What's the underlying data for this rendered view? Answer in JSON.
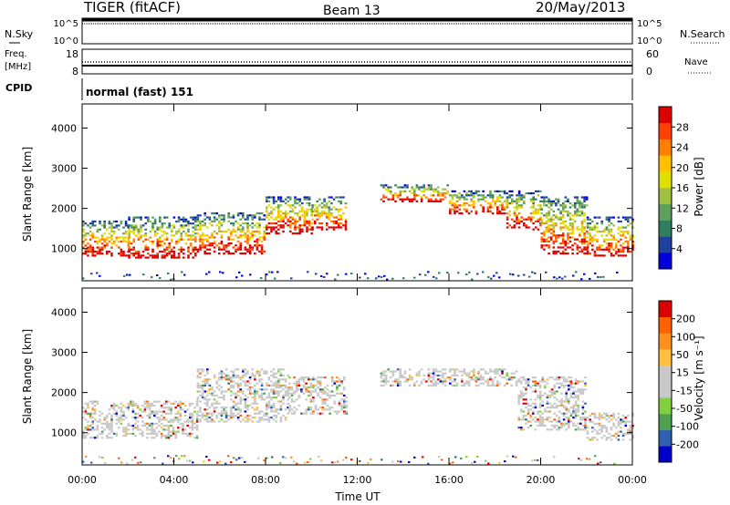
{
  "header": {
    "station": "TIGER (fitACF)",
    "beam": "Beam 13",
    "date": "20/May/2013"
  },
  "top_strips": {
    "nsky": {
      "label": "N.Sky",
      "ticks": [
        "10^5",
        "10^0"
      ]
    },
    "nsearch": {
      "label": "N.Search",
      "ticks": [
        "10^5",
        "10^0"
      ]
    },
    "freq": {
      "label_line1": "Freq.",
      "label_line2": "[MHz]",
      "ticks": [
        "18",
        "8"
      ]
    },
    "nave": {
      "label": "Nave",
      "ticks": [
        "60",
        "0"
      ]
    },
    "cpid": {
      "label": "CPID",
      "value": "normal (fast) 151"
    }
  },
  "chart_data": [
    {
      "type": "heatmap",
      "title": "",
      "ylabel": "Slant Range [km]",
      "xlabel": "Time UT",
      "x_ticks": [
        "00:00",
        "04:00",
        "08:00",
        "12:00",
        "16:00",
        "20:00",
        "00:00"
      ],
      "y_ticks": [
        1000,
        2000,
        3000,
        4000
      ],
      "ylim": [
        200,
        4600
      ],
      "xlim_hours": [
        0,
        24
      ],
      "colorbar": {
        "label": "Power [dB]",
        "ticks": [
          "28",
          "24",
          "20",
          "16",
          "12",
          "8",
          "4"
        ],
        "colors": [
          "#0000dd",
          "#2040a0",
          "#2f7f5f",
          "#5fa05f",
          "#9fc040",
          "#e0e000",
          "#ffc000",
          "#ff8000",
          "#ff4000",
          "#dd0000"
        ]
      },
      "bands": [
        {
          "from_h": 0.0,
          "to_h": 2.0,
          "lo_km": 850,
          "hi_km": 1700
        },
        {
          "from_h": 2.0,
          "to_h": 5.0,
          "lo_km": 800,
          "hi_km": 1800
        },
        {
          "from_h": 5.0,
          "to_h": 8.0,
          "lo_km": 900,
          "hi_km": 1900
        },
        {
          "from_h": 8.0,
          "to_h": 10.0,
          "lo_km": 1400,
          "hi_km": 2300
        },
        {
          "from_h": 10.0,
          "to_h": 11.5,
          "lo_km": 1500,
          "hi_km": 2300
        },
        {
          "from_h": 13.0,
          "to_h": 16.0,
          "lo_km": 2200,
          "hi_km": 2600
        },
        {
          "from_h": 16.0,
          "to_h": 18.5,
          "lo_km": 1900,
          "hi_km": 2450
        },
        {
          "from_h": 18.5,
          "to_h": 20.0,
          "lo_km": 1500,
          "hi_km": 2450
        },
        {
          "from_h": 20.0,
          "to_h": 22.0,
          "lo_km": 900,
          "hi_km": 2300
        },
        {
          "from_h": 22.0,
          "to_h": 24.0,
          "lo_km": 850,
          "hi_km": 1800
        }
      ]
    },
    {
      "type": "heatmap",
      "title": "",
      "ylabel": "Slant Range [km]",
      "xlabel": "Time UT",
      "x_ticks": [
        "00:00",
        "04:00",
        "08:00",
        "12:00",
        "16:00",
        "20:00",
        "00:00"
      ],
      "y_ticks": [
        1000,
        2000,
        3000,
        4000
      ],
      "ylim": [
        200,
        4600
      ],
      "xlim_hours": [
        0,
        24
      ],
      "colorbar": {
        "label": "Velocity [m s⁻¹]",
        "ticks": [
          "200",
          "100",
          "50",
          "15",
          "-15",
          "-50",
          "-100",
          "-200"
        ],
        "colors": [
          "#0000cc",
          "#3060b0",
          "#50a050",
          "#80d040",
          "#c8c8c8",
          "#c8c8c8",
          "#ffc040",
          "#ff9020",
          "#ff6000",
          "#dd0000"
        ]
      },
      "bands": [
        {
          "from_h": 0.0,
          "to_h": 5.0,
          "lo_km": 900,
          "hi_km": 1800
        },
        {
          "from_h": 5.0,
          "to_h": 9.0,
          "lo_km": 1300,
          "hi_km": 2600
        },
        {
          "from_h": 9.0,
          "to_h": 11.5,
          "lo_km": 1500,
          "hi_km": 2400
        },
        {
          "from_h": 13.0,
          "to_h": 19.0,
          "lo_km": 2200,
          "hi_km": 2600
        },
        {
          "from_h": 19.0,
          "to_h": 22.0,
          "lo_km": 1100,
          "hi_km": 2400
        },
        {
          "from_h": 22.0,
          "to_h": 24.0,
          "lo_km": 850,
          "hi_km": 1500
        }
      ]
    }
  ]
}
